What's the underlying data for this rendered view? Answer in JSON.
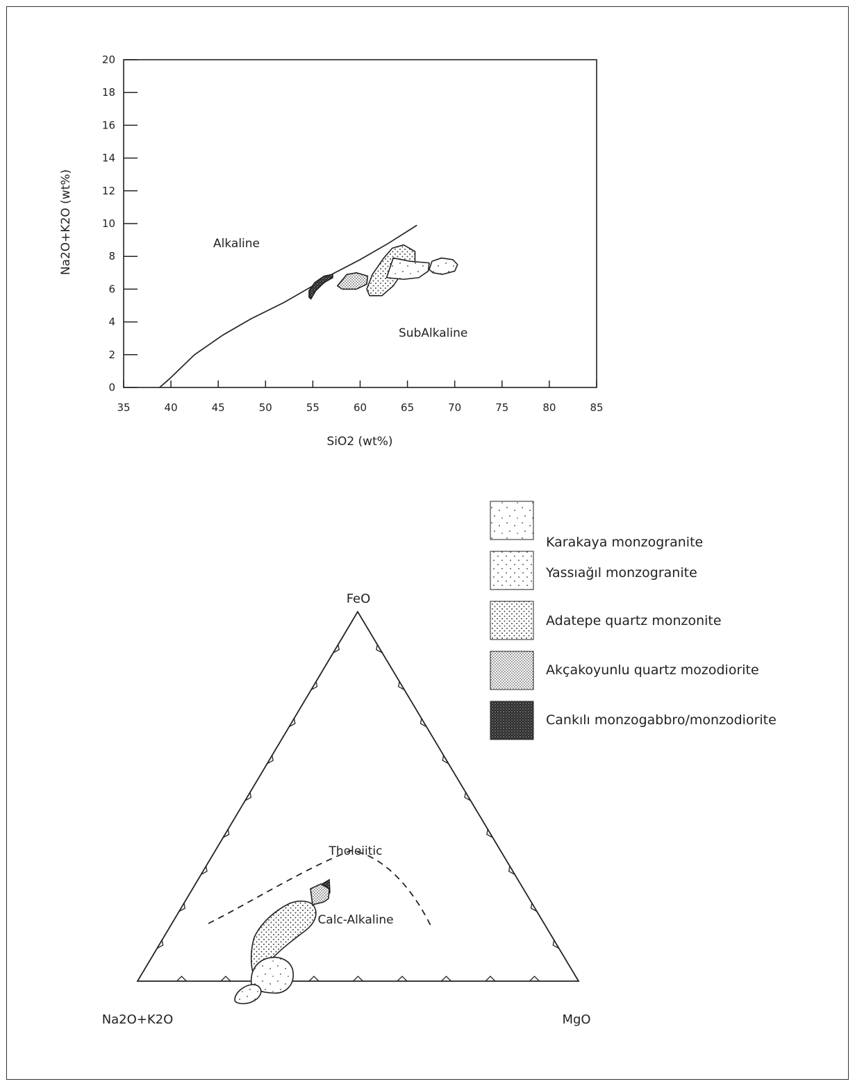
{
  "colors": {
    "ink": "#222222",
    "background": "#ffffff",
    "dark_fill": "#2a2a2a"
  },
  "chart_data": [
    {
      "type": "scatter",
      "xlabel": "SiO2 (wt%)",
      "ylabel": "Na2O+K2O (wt%)",
      "xlim": [
        35,
        85
      ],
      "ylim": [
        0,
        20
      ],
      "x_ticks": [
        35,
        40,
        45,
        50,
        55,
        60,
        65,
        70,
        75,
        80,
        85
      ],
      "y_ticks": [
        0,
        2,
        4,
        6,
        8,
        10,
        12,
        14,
        16,
        18,
        20
      ],
      "regions": [
        "Alkaline",
        "SubAlkaline"
      ],
      "boundary_line": [
        [
          38.8,
          0
        ],
        [
          39.8,
          0.5
        ],
        [
          42.5,
          2
        ],
        [
          45.5,
          3.2
        ],
        [
          48.5,
          4.2
        ],
        [
          52,
          5.2
        ],
        [
          55,
          6.2
        ],
        [
          57,
          6.9
        ],
        [
          60,
          7.8
        ],
        [
          63,
          8.8
        ],
        [
          66,
          9.9
        ]
      ],
      "fields": [
        {
          "unit": "Cankılı monzogabbro/monzodiorite",
          "pattern": "dark",
          "outline": [
            [
              54.8,
              5.4
            ],
            [
              55.3,
              5.9
            ],
            [
              56.2,
              6.4
            ],
            [
              57.1,
              6.7
            ],
            [
              57.1,
              6.9
            ],
            [
              56.2,
              6.8
            ],
            [
              55.2,
              6.4
            ],
            [
              54.6,
              5.9
            ],
            [
              54.6,
              5.5
            ]
          ]
        },
        {
          "unit": "Akçakoyunlu quartz mozodiorite",
          "pattern": "fine",
          "outline": [
            [
              57.6,
              6.2
            ],
            [
              58.6,
              6.9
            ],
            [
              59.6,
              7.0
            ],
            [
              60.8,
              6.8
            ],
            [
              60.7,
              6.3
            ],
            [
              59.6,
              6.0
            ],
            [
              58.1,
              6.0
            ]
          ]
        },
        {
          "unit": "Adatepe quartz monzonite",
          "pattern": "medium",
          "outline": [
            [
              60.7,
              6.0
            ],
            [
              61.3,
              6.9
            ],
            [
              62.5,
              7.9
            ],
            [
              63.4,
              8.5
            ],
            [
              64.6,
              8.7
            ],
            [
              65.8,
              8.3
            ],
            [
              65.8,
              7.6
            ],
            [
              64.8,
              7.3
            ],
            [
              63.5,
              6.2
            ],
            [
              62.3,
              5.6
            ],
            [
              61.0,
              5.6
            ]
          ]
        },
        {
          "unit": "Yassıağıl monzogranite",
          "pattern": "sparse",
          "outline": [
            [
              62.8,
              6.7
            ],
            [
              63.5,
              7.9
            ],
            [
              65.3,
              7.7
            ],
            [
              67.3,
              7.6
            ],
            [
              67.2,
              7.1
            ],
            [
              66.2,
              6.7
            ],
            [
              64.6,
              6.6
            ]
          ]
        },
        {
          "unit": "Karakaya monzogranite",
          "pattern": "sparse",
          "outline": [
            [
              67.3,
              7.2
            ],
            [
              67.6,
              7.7
            ],
            [
              68.6,
              7.9
            ],
            [
              69.8,
              7.8
            ],
            [
              70.3,
              7.5
            ],
            [
              70.0,
              7.1
            ],
            [
              68.7,
              6.9
            ],
            [
              67.7,
              7.0
            ]
          ]
        }
      ]
    },
    {
      "type": "ternary",
      "vertices": {
        "top": "FeO",
        "left": "Na2O+K2O",
        "right": "MgO"
      },
      "regions": [
        "Tholeiitic",
        "Calc-Alkaline"
      ],
      "boundary": "dashed line",
      "fields": [
        {
          "unit": "Karakaya monzogranite",
          "pattern": "sparse"
        },
        {
          "unit": "Yassıağıl monzogranite",
          "pattern": "sparse"
        },
        {
          "unit": "Adatepe quartz monzonite",
          "pattern": "medium"
        },
        {
          "unit": "Akçakoyunlu quartz mozodiorite",
          "pattern": "fine"
        },
        {
          "unit": "Cankılı monzogabbro/monzodiorite",
          "pattern": "dark"
        }
      ]
    }
  ],
  "legend": [
    {
      "label": "Karakaya monzogranite",
      "pattern": "sparse"
    },
    {
      "label": "Yassıağıl monzogranite",
      "pattern": "sparse"
    },
    {
      "label": "Adatepe quartz monzonite",
      "pattern": "medium"
    },
    {
      "label": "Akçakoyunlu quartz mozodiorite",
      "pattern": "fine"
    },
    {
      "label": "Cankılı monzogabbro/monzodiorite",
      "pattern": "dark"
    }
  ]
}
